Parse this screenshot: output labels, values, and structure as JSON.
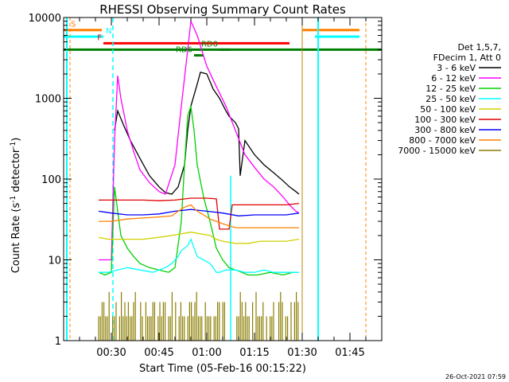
{
  "chart_data": {
    "type": "line",
    "title": "RHESSI Observing Summary Count Rates",
    "xlabel": "Start Time (05-Feb-16 00:15:22)",
    "ylabel_main": "Count Rate (s",
    "ylabel_sup1": "-1",
    "ylabel_mid": " detector",
    "ylabel_sup2": "-1",
    "ylabel_end": ")",
    "y_scale": "log",
    "ylim": [
      1,
      10000
    ],
    "xlim_minutes": [
      0,
      100
    ],
    "y_ticks": [
      {
        "value": 1,
        "label": "1"
      },
      {
        "value": 10,
        "label": "10"
      },
      {
        "value": 100,
        "label": "100"
      },
      {
        "value": 1000,
        "label": "1000"
      },
      {
        "value": 10000,
        "label": "10000"
      }
    ],
    "x_ticks": [
      {
        "value": 15,
        "label": "00:30"
      },
      {
        "value": 30,
        "label": "00:45"
      },
      {
        "value": 45,
        "label": "01:00"
      },
      {
        "value": 60,
        "label": "01:15"
      },
      {
        "value": 75,
        "label": "01:30"
      },
      {
        "value": 90,
        "label": "01:45"
      }
    ],
    "legend_header": [
      "Det 1,5,7,",
      "FDecim 1, Att 0"
    ],
    "legend_placement": "right",
    "series": [
      {
        "name": "3 - 6 keV",
        "color": "#000000",
        "x": [
          15,
          16,
          17,
          19,
          21,
          24,
          27,
          30,
          32,
          34,
          36,
          38,
          39,
          40,
          42,
          43,
          45,
          47,
          49,
          51,
          52,
          54,
          55,
          55.5,
          57,
          60,
          63,
          66,
          69,
          71,
          73,
          74
        ],
        "y": [
          null,
          400,
          700,
          450,
          300,
          180,
          110,
          80,
          68,
          65,
          80,
          150,
          400,
          800,
          1500,
          2100,
          2000,
          1300,
          1000,
          700,
          600,
          500,
          420,
          110,
          300,
          200,
          150,
          120,
          95,
          80,
          70,
          65
        ]
      },
      {
        "name": "6 - 12 keV",
        "color": "#ff00ff",
        "x": [
          11,
          12.5,
          14,
          15,
          16,
          17,
          18,
          20,
          22,
          24,
          27,
          30,
          32,
          35,
          37,
          39,
          40,
          42,
          45,
          48,
          51,
          54,
          57,
          60,
          63,
          66,
          69,
          71,
          73,
          74
        ],
        "y": [
          10,
          10,
          10,
          10,
          300,
          1900,
          1000,
          400,
          220,
          130,
          90,
          70,
          65,
          150,
          800,
          4000,
          9000,
          6000,
          2500,
          1400,
          800,
          400,
          200,
          140,
          100,
          80,
          60,
          48,
          40,
          38
        ]
      },
      {
        "name": "12 - 25 keV",
        "color": "#00d000",
        "x": [
          11,
          13,
          15,
          16,
          17,
          18,
          20,
          22,
          24,
          27,
          30,
          33,
          35,
          37,
          38,
          39,
          40,
          41,
          42,
          44,
          46,
          48,
          50,
          52,
          54,
          56,
          58,
          61,
          65,
          69,
          72,
          74
        ],
        "y": [
          7,
          6.5,
          7,
          80,
          40,
          20,
          14,
          11,
          9,
          8,
          7.5,
          7,
          8,
          30,
          150,
          600,
          800,
          400,
          150,
          60,
          30,
          14,
          10,
          8,
          7.5,
          7,
          6.5,
          6.5,
          7,
          6.5,
          7,
          7
        ]
      },
      {
        "name": "25 - 50 keV",
        "color": "#00ffff",
        "x": [
          11,
          14,
          17,
          20,
          24,
          28,
          32,
          34,
          36,
          37,
          38,
          39,
          40,
          41,
          42,
          44,
          46,
          47,
          48,
          49,
          51,
          54,
          57,
          60,
          63,
          66,
          69,
          72,
          74
        ],
        "y": [
          7,
          7,
          7.5,
          8,
          7.5,
          7,
          8,
          9,
          11,
          13,
          14,
          15,
          18,
          14,
          11,
          10,
          9,
          8,
          7,
          7,
          7.5,
          7.5,
          7,
          7,
          7.5,
          7,
          7,
          7,
          7
        ]
      },
      {
        "name": "50 - 100 keV",
        "color": "#d0d000",
        "x": [
          11,
          14,
          17,
          20,
          25,
          30,
          34,
          37,
          40,
          43,
          46,
          48,
          50,
          54,
          58,
          62,
          66,
          70,
          74
        ],
        "y": [
          19,
          18,
          18,
          18,
          18,
          19,
          20,
          21,
          22,
          21,
          20,
          18,
          17,
          16,
          16,
          17,
          17,
          17,
          18
        ]
      },
      {
        "name": "100 - 300 keV",
        "color": "#e00000",
        "x": [
          11,
          15,
          20,
          25,
          30,
          35,
          40,
          45,
          48,
          49,
          50,
          51,
          52,
          53,
          55,
          60,
          65,
          70,
          74
        ],
        "y": [
          55,
          55,
          55,
          55,
          54,
          55,
          58,
          58,
          57,
          24,
          24,
          24,
          24,
          48,
          48,
          48,
          48,
          48,
          50
        ]
      },
      {
        "name": "300 - 800 keV",
        "color": "#0000ff",
        "x": [
          11,
          15,
          20,
          25,
          30,
          35,
          40,
          45,
          50,
          55,
          60,
          65,
          70,
          74
        ],
        "y": [
          40,
          38,
          36,
          36,
          37,
          40,
          42,
          40,
          38,
          35,
          36,
          36,
          36,
          38
        ]
      },
      {
        "name": "800 - 7000 keV",
        "color": "#ff8000",
        "x": [
          11,
          15,
          20,
          25,
          30,
          34,
          36,
          38,
          40,
          42,
          44,
          46,
          48,
          50,
          54,
          58,
          62,
          66,
          70,
          74
        ],
        "y": [
          30,
          30,
          32,
          33,
          34,
          35,
          40,
          45,
          48,
          40,
          36,
          32,
          30,
          28,
          25,
          25,
          25,
          25,
          25,
          25
        ]
      },
      {
        "name": "7000 - 15000 keV",
        "color": "#8b7d00",
        "x": [
          11,
          74
        ],
        "y": [
          1.5,
          1.5
        ]
      }
    ],
    "bars": [
      {
        "label": "S",
        "color": "#ff8000",
        "x_start": 0,
        "x_end": 12,
        "y": 7000
      },
      {
        "label": "N",
        "color": "#00ffff",
        "x_start": 0,
        "x_end": 12.5,
        "y": 5800
      },
      {
        "label": "F",
        "color": "#ff0000",
        "x_start": 12.5,
        "x_end": 71,
        "y": 4800
      },
      {
        "label": "",
        "color": "#007f00",
        "x_start": 0,
        "x_end": 100,
        "y": 4000
      },
      {
        "label": "RD0",
        "color": "#007f00",
        "x_start": 49,
        "x_end": 52,
        "y": 4000
      },
      {
        "label": "RD6",
        "color": "#007f00",
        "x_start": 41,
        "x_end": 44,
        "y": 3400
      },
      {
        "label": "",
        "color": "#ff8000",
        "x_start": 75,
        "x_end": 93,
        "y": 7000
      },
      {
        "label": "",
        "color": "#00ffff",
        "x_start": 79,
        "x_end": 93,
        "y": 5800
      }
    ],
    "timestamp": "26-Oct-2021 07:59"
  }
}
